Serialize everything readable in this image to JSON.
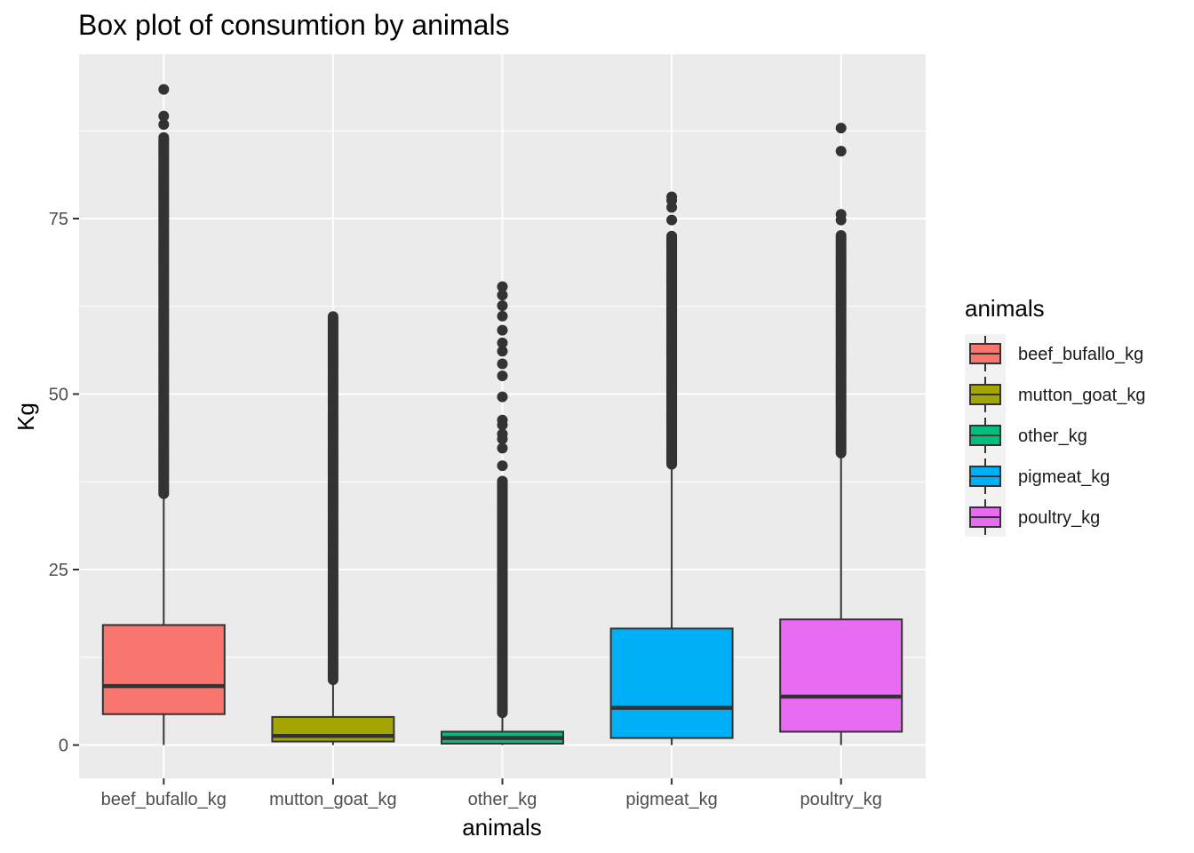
{
  "chart_data": {
    "type": "box",
    "title": "Box plot of consumtion by animals",
    "xlabel": "animals",
    "ylabel": "Kg",
    "ylim": [
      -4.7,
      98
    ],
    "yticks": [
      0,
      25,
      50,
      75
    ],
    "ytick_labels": [
      "0",
      "25",
      "50",
      "75"
    ],
    "grid": true,
    "legend": {
      "title": "animals",
      "position": "right"
    },
    "categories": [
      "beef_bufallo_kg",
      "mutton_goat_kg",
      "other_kg",
      "pigmeat_kg",
      "poultry_kg"
    ],
    "series": [
      {
        "name": "beef_bufallo_kg",
        "color": "#F8766D",
        "min": 0,
        "q1": 4.4,
        "median": 8.4,
        "q3": 17.1,
        "whisker_max": 35.8,
        "outlier_range": [
          35.8,
          86.6
        ],
        "outliers": [
          88.4,
          89.6,
          93.4
        ]
      },
      {
        "name": "mutton_goat_kg",
        "color": "#A3A500",
        "min": 0,
        "q1": 0.5,
        "median": 1.3,
        "q3": 4.0,
        "whisker_max": 9.3,
        "outlier_range": [
          9.3,
          61.1
        ],
        "outliers": []
      },
      {
        "name": "other_kg",
        "color": "#00BF7D",
        "min": 0,
        "q1": 0.2,
        "median": 1.0,
        "q3": 1.9,
        "whisker_max": 4.6,
        "outlier_range": [
          4.6,
          37.6
        ],
        "outliers": [
          39.8,
          42.3,
          43.6,
          44.3,
          45.6,
          46.3,
          49.6,
          52.6,
          54.3,
          56.1,
          57.3,
          59.1,
          61.1,
          62.6,
          64.1,
          65.3
        ]
      },
      {
        "name": "pigmeat_kg",
        "color": "#00B0F6",
        "min": 0,
        "q1": 1.0,
        "median": 5.3,
        "q3": 16.6,
        "whisker_max": 40.0,
        "outlier_range": [
          40.0,
          72.6
        ],
        "outliers": [
          74.8,
          76.6,
          77.6,
          78.1
        ]
      },
      {
        "name": "poultry_kg",
        "color": "#E76BF3",
        "min": 0,
        "q1": 1.9,
        "median": 6.9,
        "q3": 17.9,
        "whisker_max": 41.6,
        "outlier_range": [
          41.6,
          72.8
        ],
        "outliers": [
          74.8,
          75.6,
          84.6,
          87.9
        ]
      }
    ]
  }
}
